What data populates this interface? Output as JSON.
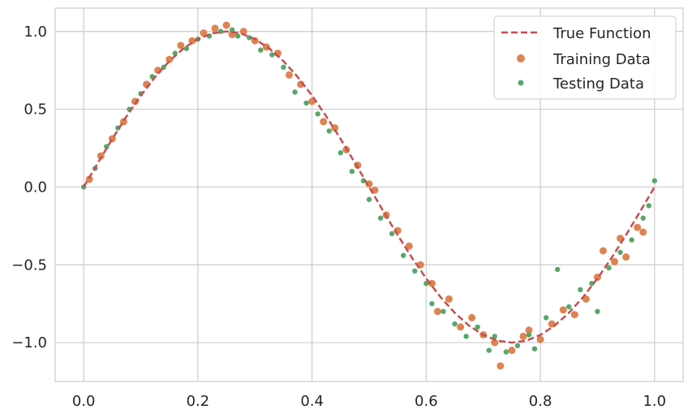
{
  "chart_data": {
    "type": "scatter",
    "title": "",
    "xlabel": "",
    "ylabel": "",
    "xlim": [
      -0.05,
      1.05
    ],
    "ylim": [
      -1.25,
      1.15
    ],
    "grid": true,
    "legend_position": "top-right",
    "x_ticks": [
      {
        "value": 0.0,
        "label": "0.0"
      },
      {
        "value": 0.2,
        "label": "0.2"
      },
      {
        "value": 0.4,
        "label": "0.4"
      },
      {
        "value": 0.6,
        "label": "0.6"
      },
      {
        "value": 0.8,
        "label": "0.8"
      },
      {
        "value": 1.0,
        "label": "1.0"
      }
    ],
    "y_ticks": [
      {
        "value": 1.0,
        "label": "1.0"
      },
      {
        "value": 0.5,
        "label": "0.5"
      },
      {
        "value": 0.0,
        "label": "0.0"
      },
      {
        "value": -0.5,
        "label": "−0.5"
      },
      {
        "value": -1.0,
        "label": "−1.0"
      }
    ],
    "series": [
      {
        "name": "True Function",
        "kind": "line",
        "style": "dashed",
        "color": "#c44e52",
        "x": [
          0.0,
          0.025,
          0.05,
          0.075,
          0.1,
          0.125,
          0.15,
          0.175,
          0.2,
          0.225,
          0.25,
          0.275,
          0.3,
          0.325,
          0.35,
          0.375,
          0.4,
          0.425,
          0.45,
          0.475,
          0.5,
          0.525,
          0.55,
          0.575,
          0.6,
          0.625,
          0.65,
          0.675,
          0.7,
          0.725,
          0.75,
          0.775,
          0.8,
          0.825,
          0.85,
          0.875,
          0.9,
          0.925,
          0.95,
          0.975,
          1.0
        ],
        "y": [
          0.0,
          0.156,
          0.309,
          0.454,
          0.588,
          0.707,
          0.809,
          0.891,
          0.951,
          0.988,
          1.0,
          0.988,
          0.951,
          0.891,
          0.809,
          0.707,
          0.588,
          0.454,
          0.309,
          0.156,
          0.0,
          -0.156,
          -0.309,
          -0.454,
          -0.588,
          -0.707,
          -0.809,
          -0.891,
          -0.951,
          -0.988,
          -1.0,
          -0.988,
          -0.951,
          -0.891,
          -0.809,
          -0.707,
          -0.588,
          -0.454,
          -0.309,
          -0.156,
          0.0
        ]
      },
      {
        "name": "Training Data",
        "kind": "scatter",
        "color": "#dd8452",
        "x": [
          0.01,
          0.03,
          0.05,
          0.07,
          0.09,
          0.11,
          0.13,
          0.15,
          0.17,
          0.19,
          0.21,
          0.23,
          0.25,
          0.26,
          0.28,
          0.3,
          0.32,
          0.34,
          0.36,
          0.38,
          0.4,
          0.42,
          0.44,
          0.46,
          0.48,
          0.5,
          0.51,
          0.53,
          0.55,
          0.57,
          0.59,
          0.61,
          0.62,
          0.64,
          0.66,
          0.68,
          0.7,
          0.72,
          0.73,
          0.75,
          0.77,
          0.78,
          0.8,
          0.82,
          0.84,
          0.86,
          0.88,
          0.9,
          0.91,
          0.93,
          0.94,
          0.95,
          0.97,
          0.98
        ],
        "y": [
          0.05,
          0.2,
          0.31,
          0.42,
          0.55,
          0.66,
          0.75,
          0.82,
          0.91,
          0.94,
          0.99,
          1.02,
          1.04,
          0.98,
          1.0,
          0.94,
          0.9,
          0.86,
          0.72,
          0.66,
          0.55,
          0.42,
          0.38,
          0.24,
          0.14,
          0.02,
          -0.02,
          -0.18,
          -0.28,
          -0.38,
          -0.5,
          -0.62,
          -0.8,
          -0.72,
          -0.9,
          -0.84,
          -0.95,
          -1.0,
          -1.15,
          -1.05,
          -0.96,
          -0.92,
          -0.98,
          -0.88,
          -0.79,
          -0.82,
          -0.72,
          -0.58,
          -0.41,
          -0.48,
          -0.33,
          -0.45,
          -0.26,
          -0.29
        ]
      },
      {
        "name": "Testing Data",
        "kind": "scatter",
        "color": "#55a868",
        "x": [
          0.0,
          0.02,
          0.04,
          0.06,
          0.08,
          0.1,
          0.12,
          0.14,
          0.16,
          0.18,
          0.2,
          0.22,
          0.24,
          0.26,
          0.27,
          0.29,
          0.31,
          0.33,
          0.35,
          0.37,
          0.39,
          0.41,
          0.43,
          0.45,
          0.47,
          0.49,
          0.5,
          0.52,
          0.54,
          0.56,
          0.58,
          0.6,
          0.61,
          0.63,
          0.65,
          0.67,
          0.69,
          0.71,
          0.72,
          0.74,
          0.76,
          0.78,
          0.79,
          0.81,
          0.83,
          0.85,
          0.87,
          0.89,
          0.9,
          0.92,
          0.94,
          0.96,
          0.98,
          0.99,
          1.0
        ],
        "y": [
          0.0,
          0.12,
          0.26,
          0.38,
          0.5,
          0.6,
          0.71,
          0.77,
          0.86,
          0.89,
          0.95,
          0.97,
          1.0,
          1.01,
          0.97,
          0.96,
          0.88,
          0.85,
          0.77,
          0.61,
          0.54,
          0.47,
          0.36,
          0.22,
          0.1,
          0.04,
          -0.08,
          -0.2,
          -0.3,
          -0.44,
          -0.54,
          -0.62,
          -0.75,
          -0.8,
          -0.88,
          -0.96,
          -0.9,
          -1.05,
          -0.96,
          -1.06,
          -1.02,
          -0.95,
          -1.04,
          -0.84,
          -0.53,
          -0.77,
          -0.66,
          -0.62,
          -0.8,
          -0.52,
          -0.42,
          -0.34,
          -0.2,
          -0.12,
          0.04
        ]
      }
    ]
  }
}
